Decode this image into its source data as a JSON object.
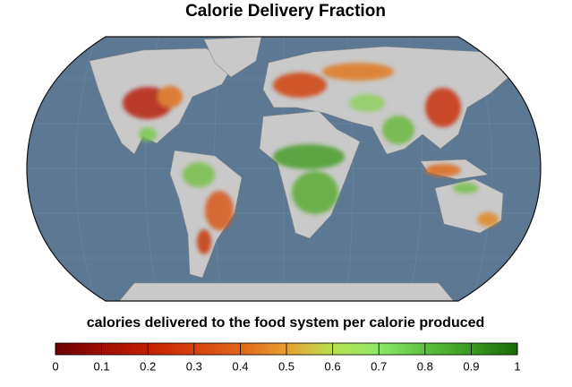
{
  "chart_data": {
    "type": "map",
    "title": "Calorie Delivery Fraction",
    "colorbar": {
      "label": "calories delivered to the food system per calorie produced",
      "lim": [
        0,
        1
      ],
      "ticks": [
        0,
        0.1,
        0.2,
        0.3,
        0.4,
        0.5,
        0.6,
        0.7,
        0.8,
        0.9,
        1
      ],
      "colors": [
        "#6b0000",
        "#a00d00",
        "#c41f00",
        "#d8410c",
        "#e0661a",
        "#e8a030",
        "#b8e050",
        "#8ee868",
        "#5cc040",
        "#389a20",
        "#1c6a08"
      ]
    }
  }
}
